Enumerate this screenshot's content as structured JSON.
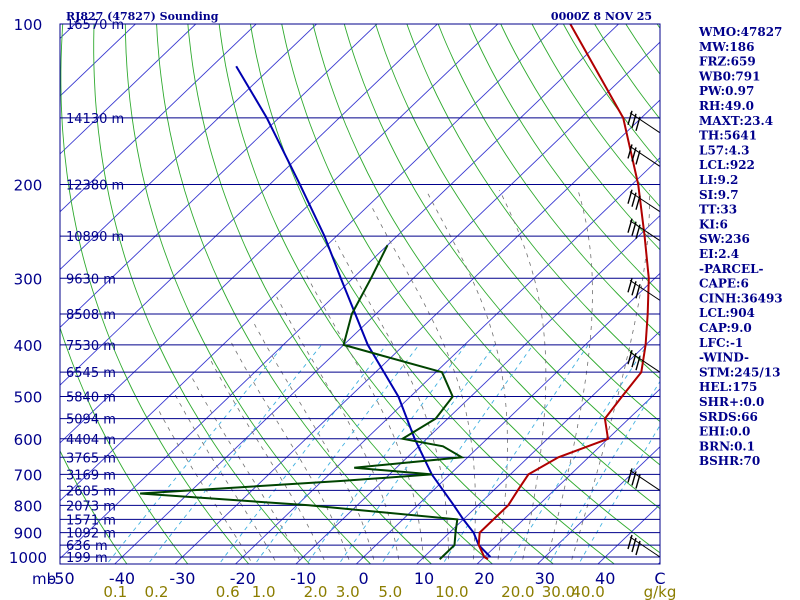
{
  "header": {
    "station": "RJ827 (47827) Sounding",
    "time": "0000Z  8 NOV 25"
  },
  "indices": [
    "WMO:47827",
    "MW:186",
    "FRZ:659",
    "WB0:791",
    "PW:0.97",
    "RH:49.0",
    "MAXT:23.4",
    "TH:5641",
    "L57:4.3",
    "LCL:922",
    "LI:9.2",
    "SI:9.7",
    "TT:33",
    "KI:6",
    "SW:236",
    "EI:2.4",
    "-PARCEL-",
    "CAPE:6",
    "CINH:36493",
    "LCL:904",
    "CAP:9.0",
    "LFC:-1",
    "-WIND-",
    "STM:245/13",
    "HEL:175",
    "SHR+:0.0",
    "SRDS:66",
    "EHI:0.0",
    "BRN:0.1",
    "BSHR:70"
  ],
  "colors": {
    "frame": "#00008b",
    "temperature": "#b00000",
    "dewpoint": "#004400",
    "parcel": "#0000b0",
    "isotherm": "#3a3ad0",
    "dry_adiabat": "#2faa2f",
    "moist_adiabat": "#707070",
    "mixing_ratio": "#40b0e0",
    "mix_label": "#8b7d00"
  },
  "chart_data": {
    "type": "skew-t",
    "pressure_unit": "mb",
    "mixing_ratio_unit": "g/kg",
    "pressure_labels": [
      "100",
      "200",
      "300",
      "400",
      "500",
      "600",
      "700",
      "800",
      "900",
      "1000"
    ],
    "pressure_levels": [
      100,
      200,
      300,
      400,
      500,
      600,
      700,
      800,
      900,
      1000
    ],
    "height_labels": [
      {
        "p": 100,
        "label": "16570 m"
      },
      {
        "p": 150,
        "label": "14130 m"
      },
      {
        "p": 200,
        "label": "12380 m"
      },
      {
        "p": 250,
        "label": "10890 m"
      },
      {
        "p": 300,
        "label": "9630 m"
      },
      {
        "p": 350,
        "label": "8508 m"
      },
      {
        "p": 400,
        "label": "7530 m"
      },
      {
        "p": 450,
        "label": "6545 m"
      },
      {
        "p": 500,
        "label": "5840 m"
      },
      {
        "p": 550,
        "label": "5094 m"
      },
      {
        "p": 600,
        "label": "4404 m"
      },
      {
        "p": 650,
        "label": "3765 m"
      },
      {
        "p": 700,
        "label": "3169 m"
      },
      {
        "p": 750,
        "label": "2605 m"
      },
      {
        "p": 800,
        "label": "2073 m"
      },
      {
        "p": 850,
        "label": "1571 m"
      },
      {
        "p": 900,
        "label": "1092 m"
      },
      {
        "p": 950,
        "label": "636 m"
      },
      {
        "p": 1000,
        "label": "199 m"
      }
    ],
    "temperature_ticks": [
      "-50",
      "-40",
      "-30",
      "-20",
      "-10",
      "0",
      "10",
      "20",
      "30",
      "40",
      "C"
    ],
    "temperature_values": [
      -50,
      -40,
      -30,
      -20,
      -10,
      0,
      10,
      20,
      30,
      40
    ],
    "mixing_ratio_labels": [
      "0.1",
      "0.2",
      "0.6",
      "1.0",
      "2.0",
      "3.0",
      "5.0",
      "10.0",
      "20.0",
      "30.0",
      "40.0",
      "g/kg"
    ],
    "mixing_ratio_values": [
      0.1,
      0.2,
      0.6,
      1.0,
      2.0,
      3.0,
      5.0,
      10.0,
      20.0,
      30.0,
      40.0
    ],
    "temperature": [
      [
        1010,
        21
      ],
      [
        1000,
        20
      ],
      [
        950,
        17
      ],
      [
        900,
        15
      ],
      [
        850,
        15
      ],
      [
        800,
        15
      ],
      [
        750,
        14
      ],
      [
        700,
        13
      ],
      [
        650,
        15
      ],
      [
        600,
        20
      ],
      [
        550,
        16
      ],
      [
        500,
        15
      ],
      [
        450,
        14
      ],
      [
        400,
        10
      ],
      [
        350,
        5
      ],
      [
        300,
        -1
      ],
      [
        250,
        -9
      ],
      [
        200,
        -19
      ],
      [
        150,
        -33
      ],
      [
        100,
        -58
      ]
    ],
    "dewpoint": [
      [
        1010,
        13
      ],
      [
        1000,
        13
      ],
      [
        950,
        13
      ],
      [
        900,
        11
      ],
      [
        850,
        9
      ],
      [
        800,
        -18
      ],
      [
        760,
        -48
      ],
      [
        720,
        -17
      ],
      [
        700,
        -3
      ],
      [
        680,
        -17
      ],
      [
        650,
        -1
      ],
      [
        620,
        -6
      ],
      [
        600,
        -14
      ],
      [
        550,
        -12
      ],
      [
        500,
        -13
      ],
      [
        450,
        -19
      ],
      [
        400,
        -40
      ],
      [
        350,
        -44
      ],
      [
        300,
        -47
      ],
      [
        260,
        -50
      ]
    ],
    "parcel": [
      [
        1000,
        21
      ],
      [
        950,
        17
      ],
      [
        900,
        14
      ],
      [
        850,
        10
      ],
      [
        800,
        6
      ],
      [
        700,
        -3
      ],
      [
        600,
        -12
      ],
      [
        500,
        -22
      ],
      [
        400,
        -36
      ],
      [
        300,
        -52
      ],
      [
        250,
        -62
      ],
      [
        200,
        -75
      ],
      [
        150,
        -92
      ],
      [
        120,
        -106
      ]
    ],
    "wind_levels_mb": [
      160,
      185,
      225,
      255,
      330,
      450,
      750,
      1000
    ]
  }
}
